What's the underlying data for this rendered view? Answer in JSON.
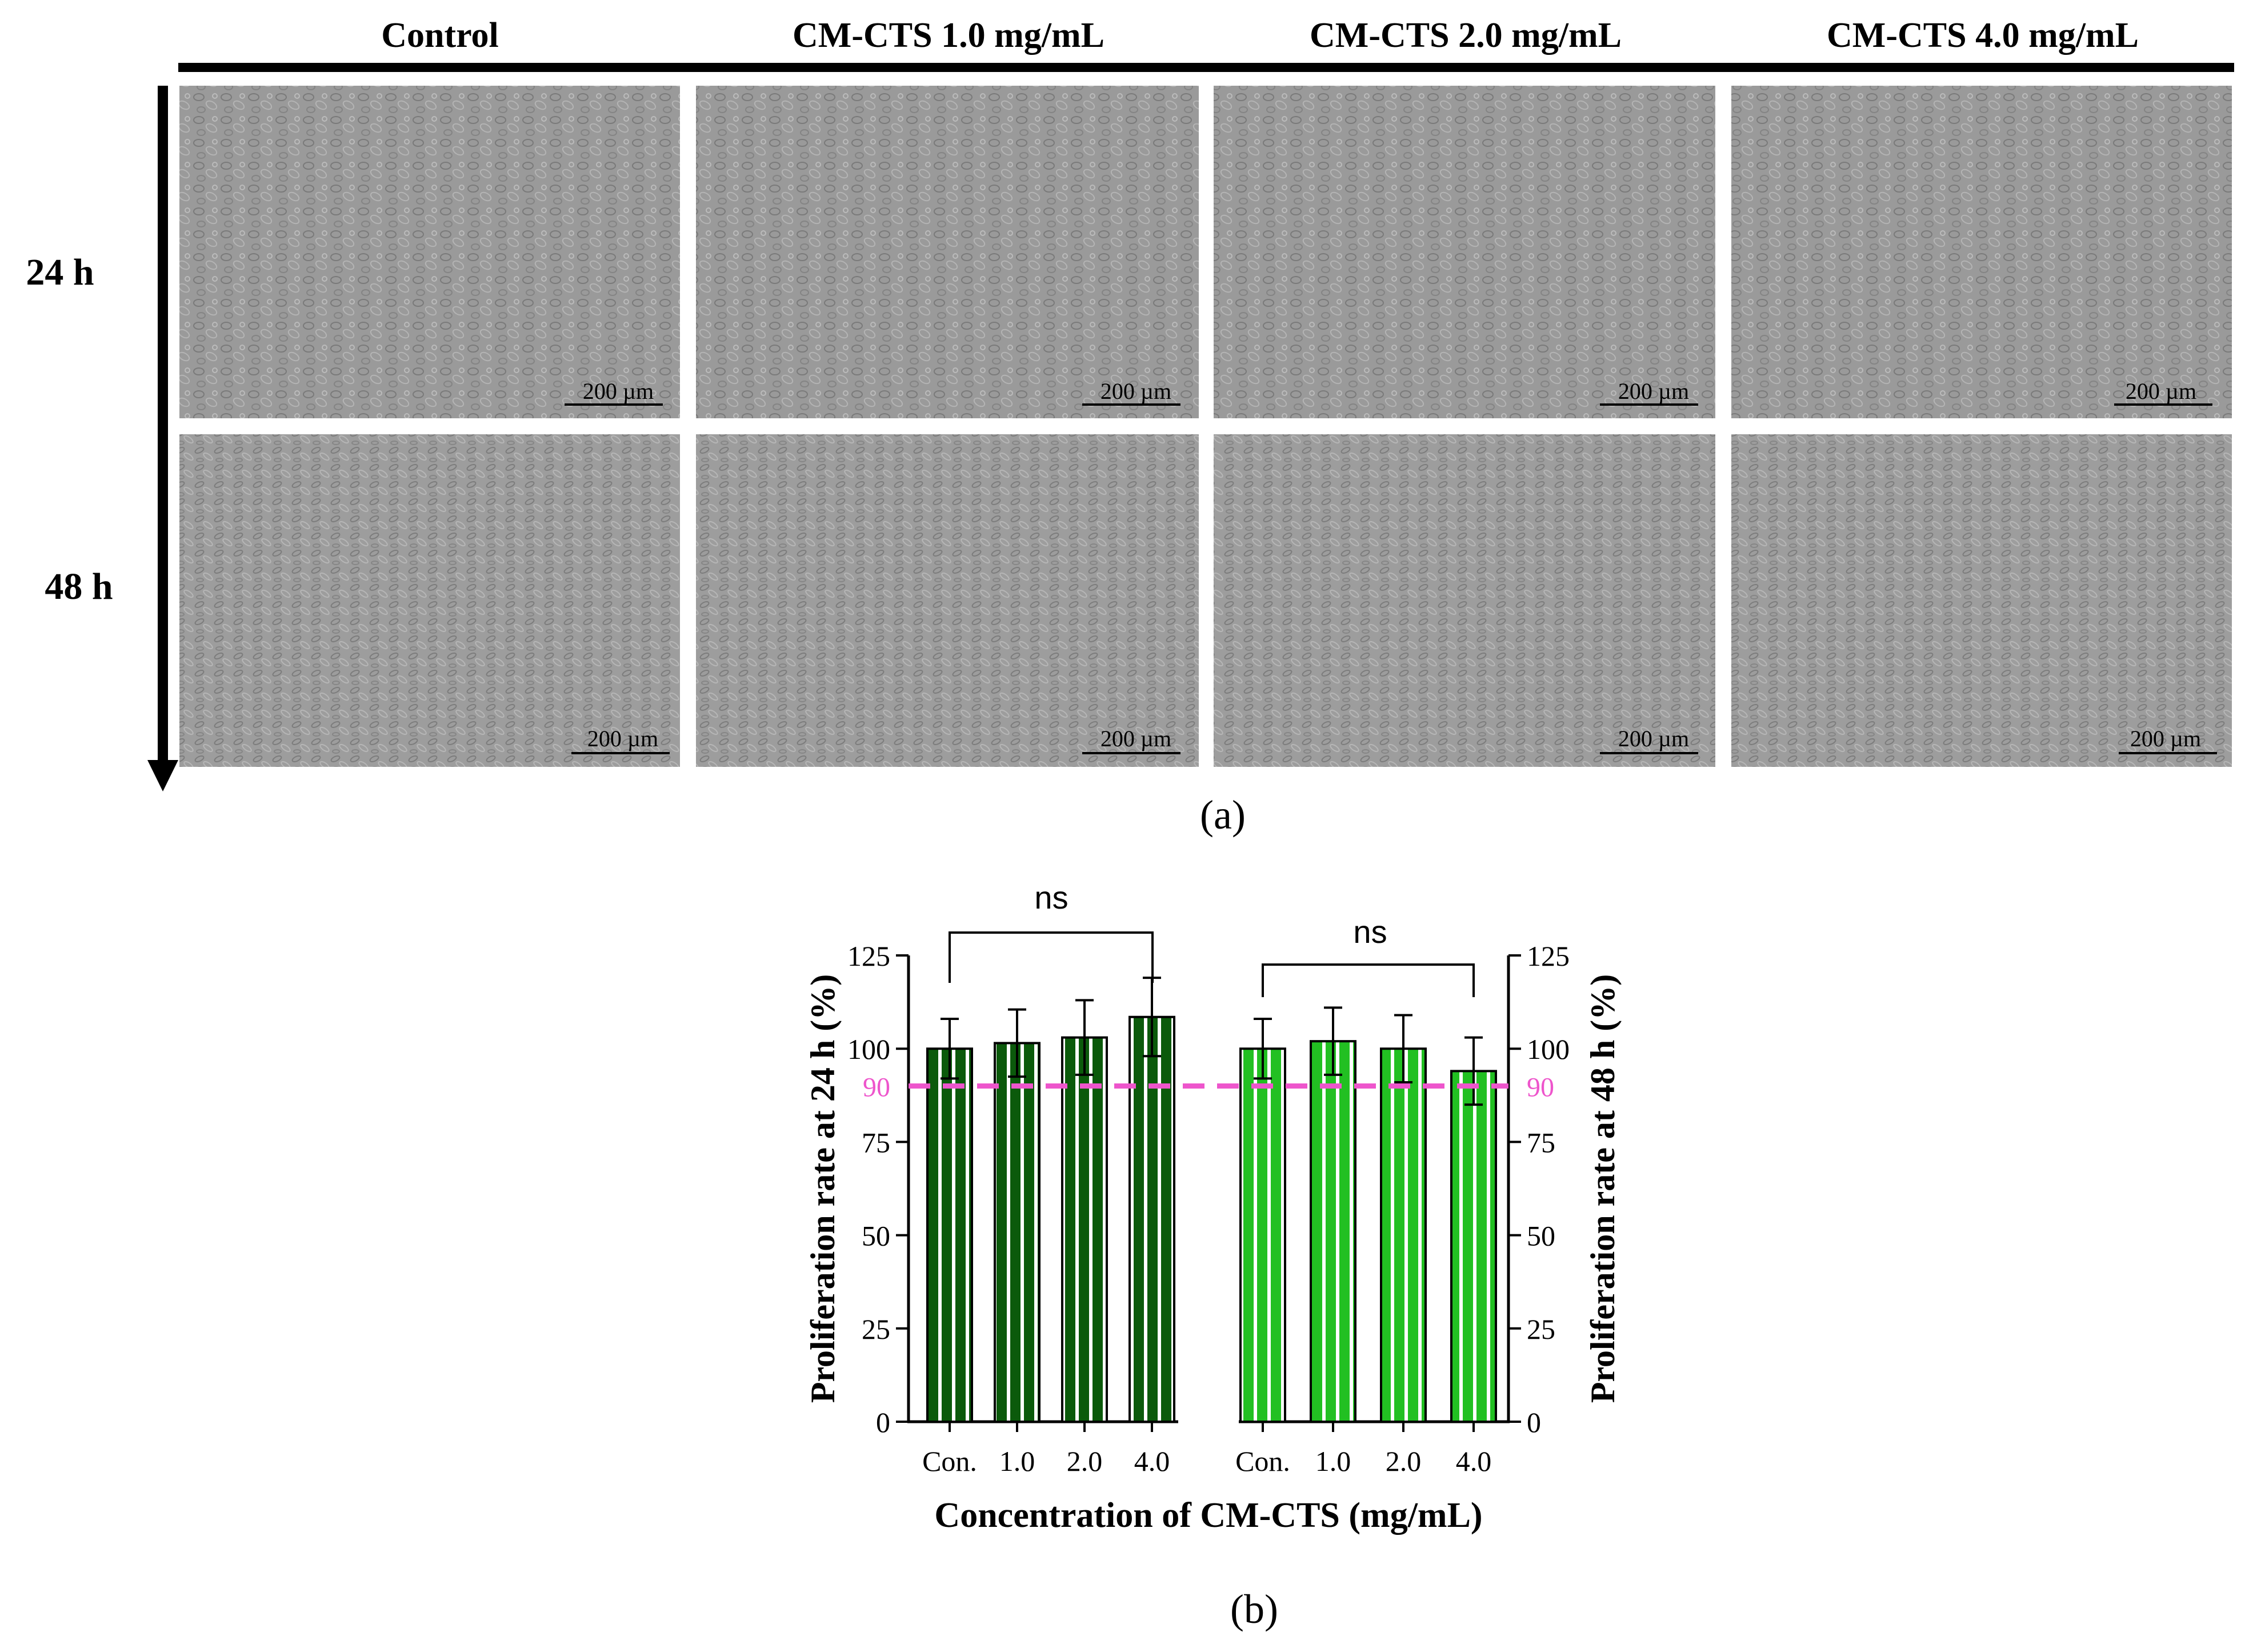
{
  "panel_a": {
    "column_headers": [
      "Control",
      "CM-CTS 1.0 mg/mL",
      "CM-CTS 2.0 mg/mL",
      "CM-CTS 4.0 mg/mL"
    ],
    "row_labels": [
      "24 h",
      "48 h"
    ],
    "scale_bar_label": "200 µm",
    "caption": "(a)"
  },
  "caption_b": "(b)",
  "chart_data": {
    "type": "bar",
    "ylabel_left": "Proliferation rate at 24 h (%)",
    "ylabel_right": "Proliferation rate at 48 h (%)",
    "xlabel": "Concentration of CM-CTS (mg/mL)",
    "ylim": [
      0,
      125
    ],
    "yticks": [
      0,
      25,
      50,
      75,
      100,
      125
    ],
    "reference_line": {
      "value": 90,
      "label": "90",
      "color": "#ee55cc"
    },
    "significance": [
      "ns",
      "ns"
    ],
    "series": [
      {
        "group": "24 h",
        "categories": [
          "Con.",
          "1.0",
          "2.0",
          "4.0"
        ],
        "values": [
          100,
          101.5,
          103,
          108.5
        ],
        "errors": [
          8,
          9,
          10,
          10.5
        ],
        "color": "#0b5a0b"
      },
      {
        "group": "48 h",
        "categories": [
          "Con.",
          "1.0",
          "2.0",
          "4.0"
        ],
        "values": [
          100,
          102,
          100,
          94
        ],
        "errors": [
          8,
          9,
          9,
          9
        ],
        "color": "#22c022"
      }
    ]
  }
}
